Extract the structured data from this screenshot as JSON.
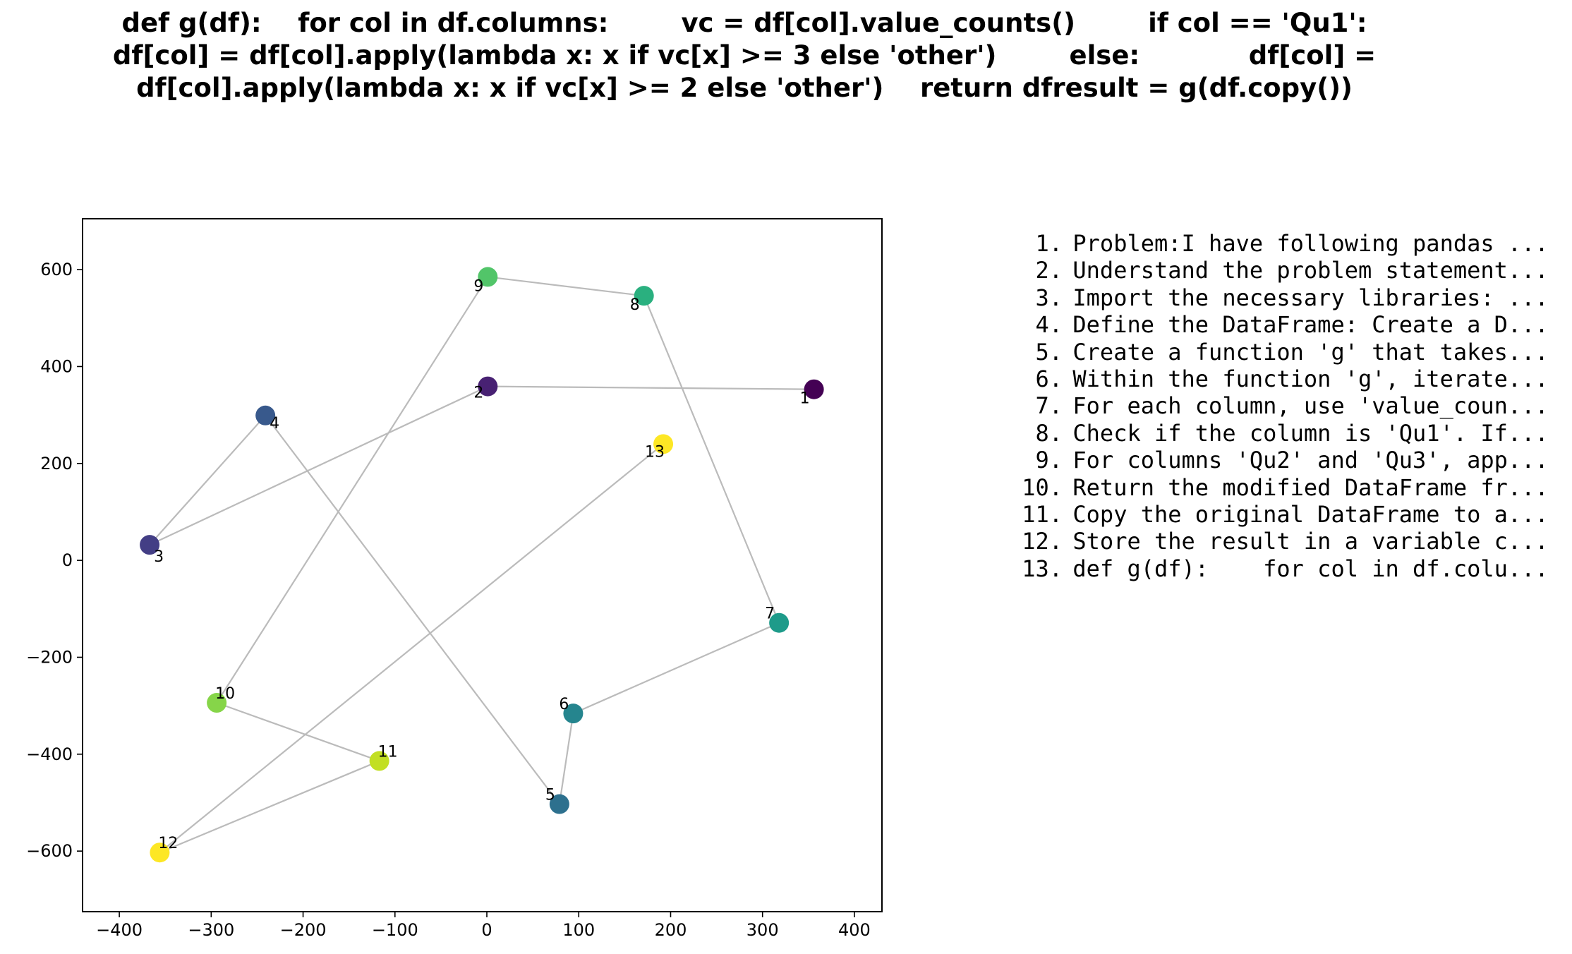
{
  "chart_data": {
    "type": "scatter",
    "title": "def g(df):    for col in df.columns:        vc = df[col].value_counts()        if col == 'Qu1':            df[col] = df[col].apply(lambda x: x if vc[x] >= 3 else 'other')        else:            df[col] = df[col].apply(lambda x: x if vc[x] >= 2 else 'other')    return dfresult = g(df.copy())",
    "xlabel": "",
    "ylabel": "",
    "xlim": [
      -440,
      430
    ],
    "ylim": [
      -725,
      705
    ],
    "xticks": [
      -400,
      -300,
      -200,
      -100,
      0,
      100,
      200,
      300,
      400
    ],
    "yticks": [
      -600,
      -400,
      -200,
      0,
      200,
      400,
      600
    ],
    "grid": false,
    "connected_in_order": true,
    "line_color": "#bbbbbb",
    "colormap": "viridis",
    "points": [
      {
        "label": "1",
        "x": 356,
        "y": 353,
        "color": "#440154"
      },
      {
        "label": "2",
        "x": 1,
        "y": 359,
        "color": "#482173"
      },
      {
        "label": "3",
        "x": -367,
        "y": 32,
        "color": "#433e85"
      },
      {
        "label": "4",
        "x": -241,
        "y": 299,
        "color": "#38598c"
      },
      {
        "label": "5",
        "x": 79,
        "y": -503,
        "color": "#2d708e"
      },
      {
        "label": "6",
        "x": 94,
        "y": -316,
        "color": "#25858e"
      },
      {
        "label": "7",
        "x": 318,
        "y": -129,
        "color": "#1e9b8a"
      },
      {
        "label": "8",
        "x": 171,
        "y": 546,
        "color": "#2ab07f"
      },
      {
        "label": "9",
        "x": 1,
        "y": 585,
        "color": "#52c569"
      },
      {
        "label": "10",
        "x": -294,
        "y": -294,
        "color": "#86d549"
      },
      {
        "label": "11",
        "x": -117,
        "y": -414,
        "color": "#c2df23"
      },
      {
        "label": "12",
        "x": -356,
        "y": -603,
        "color": "#fde725"
      },
      {
        "label": "13",
        "x": 192,
        "y": 240,
        "color": "#fde725"
      }
    ],
    "tick_labels_x": [
      "−400",
      "−300",
      "−200",
      "−100",
      "0",
      "100",
      "200",
      "300",
      "400"
    ],
    "tick_labels_y": [
      "−600",
      "−400",
      "−200",
      "0",
      "200",
      "400",
      "600"
    ]
  },
  "steps": [
    {
      "num": "1.",
      "text": "Problem:I have following pandas ..."
    },
    {
      "num": "2.",
      "text": "Understand the problem statement..."
    },
    {
      "num": "3.",
      "text": "Import the necessary libraries: ..."
    },
    {
      "num": "4.",
      "text": "Define the DataFrame: Create a D..."
    },
    {
      "num": "5.",
      "text": "Create a function 'g' that takes..."
    },
    {
      "num": "6.",
      "text": "Within the function 'g', iterate..."
    },
    {
      "num": "7.",
      "text": "For each column, use 'value_coun..."
    },
    {
      "num": "8.",
      "text": "Check if the column is 'Qu1'. If..."
    },
    {
      "num": "9.",
      "text": "For columns 'Qu2' and 'Qu3', app..."
    },
    {
      "num": "10.",
      "text": "Return the modified DataFrame fr..."
    },
    {
      "num": "11.",
      "text": "Copy the original DataFrame to a..."
    },
    {
      "num": "12.",
      "text": "Store the result in a variable c..."
    },
    {
      "num": "13.",
      "text": "def g(df):    for col in df.colu..."
    }
  ]
}
